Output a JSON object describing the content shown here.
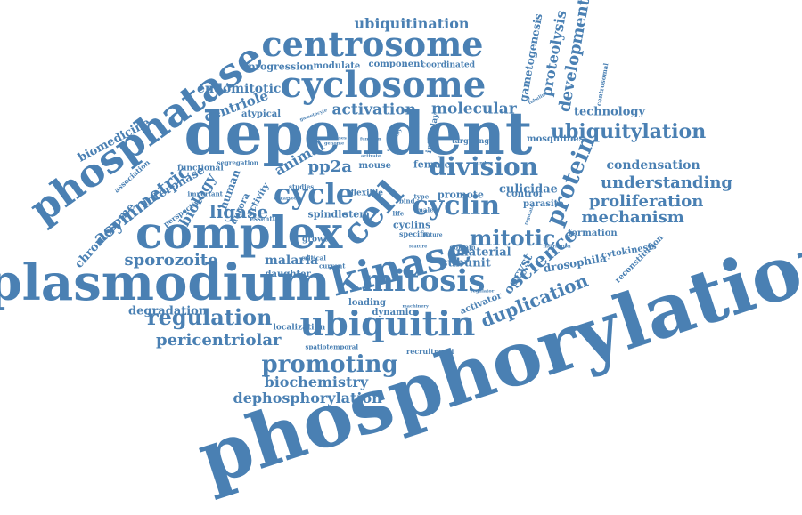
{
  "color": "#4a80b3",
  "words": [
    {
      "text": "phosphorylation"
    },
    {
      "text": "dependent"
    },
    {
      "text": "plasmodium"
    },
    {
      "text": "complex"
    },
    {
      "text": "phosphatase"
    },
    {
      "text": "kinase"
    },
    {
      "text": "cell"
    },
    {
      "text": "cyclosome"
    },
    {
      "text": "centrosome"
    },
    {
      "text": "ubiquitin"
    },
    {
      "text": "mitosis"
    },
    {
      "text": "cycle"
    },
    {
      "text": "cyclin"
    },
    {
      "text": "division"
    },
    {
      "text": "promoting"
    },
    {
      "text": "protein"
    },
    {
      "text": "ubiquitylation"
    },
    {
      "text": "mitotic"
    },
    {
      "text": "regulation"
    },
    {
      "text": "science"
    },
    {
      "text": "mechanism"
    },
    {
      "text": "proliferation"
    },
    {
      "text": "understanding"
    },
    {
      "text": "duplication"
    },
    {
      "text": "development"
    },
    {
      "text": "proteolysis"
    },
    {
      "text": "pericentriolar"
    },
    {
      "text": "biochemistry"
    },
    {
      "text": "dephosphorylation"
    },
    {
      "text": "sporozoite"
    },
    {
      "text": "ligase"
    },
    {
      "text": "asymmetric"
    },
    {
      "text": "activation"
    },
    {
      "text": "molecular"
    },
    {
      "text": "ubiquitination"
    },
    {
      "text": "condensation"
    },
    {
      "text": "centriole"
    },
    {
      "text": "endomitotic"
    },
    {
      "text": "pp2a"
    },
    {
      "text": "technology"
    },
    {
      "text": "biomedicine"
    },
    {
      "text": "degradation"
    },
    {
      "text": "malaria"
    },
    {
      "text": "subunit"
    },
    {
      "text": "interphase"
    },
    {
      "text": "chromosome"
    },
    {
      "text": "biology"
    },
    {
      "text": "animal"
    },
    {
      "text": "oocyst"
    },
    {
      "text": "culicidae"
    },
    {
      "text": "material"
    },
    {
      "text": "gametogenesis"
    },
    {
      "text": "progression"
    },
    {
      "text": "modulate"
    },
    {
      "text": "component"
    },
    {
      "text": "coordinated"
    },
    {
      "text": "atypical"
    },
    {
      "text": "mosquitoes"
    },
    {
      "text": "drosophila"
    },
    {
      "text": "promote"
    },
    {
      "text": "spindle"
    },
    {
      "text": "stem"
    },
    {
      "text": "cyclins"
    },
    {
      "text": "female"
    },
    {
      "text": "mouse"
    },
    {
      "text": "growth"
    },
    {
      "text": "daughter"
    },
    {
      "text": "loading"
    },
    {
      "text": "dynamic"
    },
    {
      "text": "localization"
    },
    {
      "text": "spatiotemporal"
    },
    {
      "text": "recruitment"
    },
    {
      "text": "activator"
    },
    {
      "text": "cytokinesis"
    },
    {
      "text": "reconstitution"
    },
    {
      "text": "formation"
    },
    {
      "text": "parasite"
    },
    {
      "text": "control"
    },
    {
      "text": "targeting"
    },
    {
      "text": "interplay"
    },
    {
      "text": "centrosomal"
    },
    {
      "text": "human"
    },
    {
      "text": "aurora"
    },
    {
      "text": "activity"
    },
    {
      "text": "functional"
    },
    {
      "text": "segregation"
    },
    {
      "text": "perspective"
    },
    {
      "text": "association"
    },
    {
      "text": "important"
    },
    {
      "text": "essential"
    },
    {
      "text": "studies"
    },
    {
      "text": "flexible"
    },
    {
      "text": "specific"
    },
    {
      "text": "critical"
    },
    {
      "text": "current"
    },
    {
      "text": "domain"
    },
    {
      "text": "type"
    },
    {
      "text": "life"
    },
    {
      "text": "male"
    },
    {
      "text": "bind"
    },
    {
      "text": "future"
    },
    {
      "text": "interaction"
    },
    {
      "text": "regulator"
    },
    {
      "text": "machinery"
    },
    {
      "text": "feature"
    },
    {
      "text": "number"
    },
    {
      "text": "regulate"
    },
    {
      "text": "processes"
    },
    {
      "text": "genome"
    },
    {
      "text": "function"
    },
    {
      "text": "activate"
    },
    {
      "text": "eukaryotes"
    },
    {
      "text": "regulatory"
    },
    {
      "text": "gametocyte"
    },
    {
      "text": "tubulin"
    }
  ]
}
